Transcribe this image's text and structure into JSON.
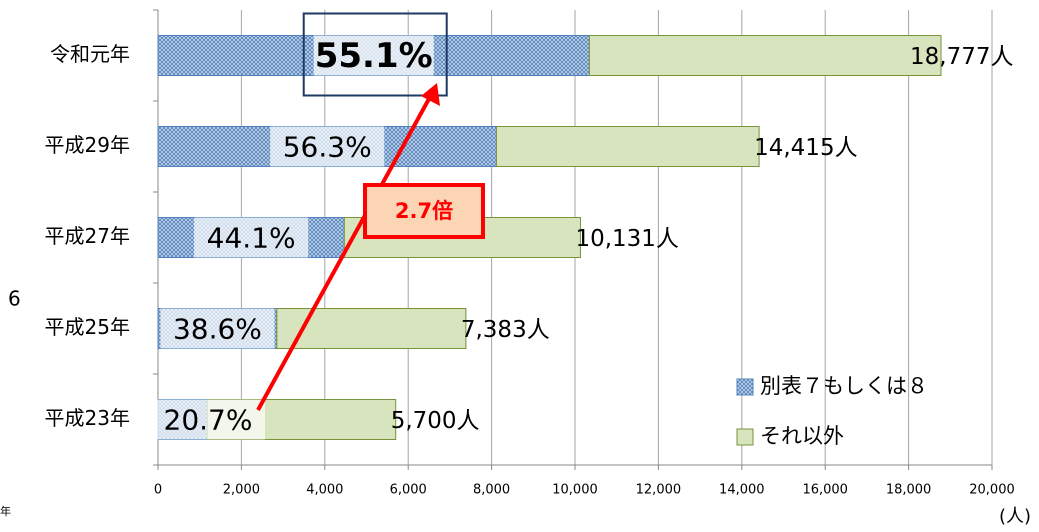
{
  "chart_data": {
    "type": "stacked_barh",
    "categories": [
      "令和元年",
      "平成29年",
      "平成27年",
      "平成25年",
      "平成23年"
    ],
    "series": [
      {
        "name": "別表７もしくは８",
        "color": "#4f81bd",
        "values": [
          10346,
          8116,
          4468,
          2850,
          1180
        ]
      },
      {
        "name": "それ以外",
        "color": "#d7e4bd",
        "values": [
          8431,
          6299,
          5663,
          4533,
          4520
        ]
      }
    ],
    "shares": [
      55.1,
      56.3,
      44.1,
      38.6,
      20.7
    ],
    "share_labels": [
      "55.1%",
      "56.3%",
      "44.1%",
      "38.6%",
      "20.7%"
    ],
    "totals": [
      18777,
      14415,
      10131,
      7383,
      5700
    ],
    "total_labels": [
      "18,777人",
      "14,415人",
      "10,131人",
      "7,383人",
      "5,700人"
    ],
    "annotation": "2.7倍",
    "x_axis_label": "(人)",
    "edge_texts": [
      "6",
      "年"
    ],
    "xlim": [
      0,
      20000
    ],
    "xticks": [
      0,
      {
        "value": 2000,
        "label": "2,000"
      },
      {
        "value": 4000,
        "label": "4,000"
      },
      {
        "value": 6000,
        "label": "6,000"
      },
      {
        "value": 8000,
        "label": "8,000"
      },
      {
        "value": 10000,
        "label": "10,000"
      },
      {
        "value": 12000,
        "label": "12,000"
      },
      {
        "value": 14000,
        "label": "14,000"
      },
      {
        "value": 16000,
        "label": "16,000"
      },
      {
        "value": 18000,
        "label": "18,000"
      },
      {
        "value": 20000,
        "label": "20,000"
      }
    ],
    "grid": true,
    "legend": "lower right"
  }
}
